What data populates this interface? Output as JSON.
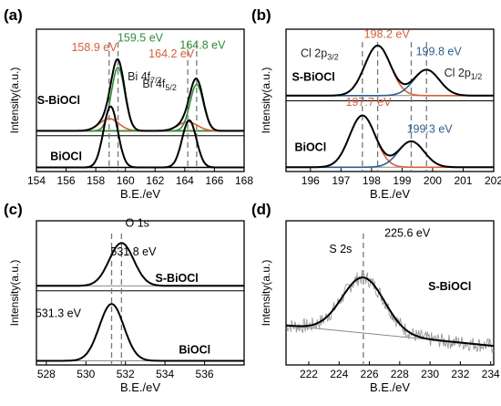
{
  "chart_data": [
    {
      "panel": "(a)",
      "type": "line",
      "xlabel": "B.E./eV",
      "ylabel": "Intensity(a.u.)",
      "xlim": [
        154,
        168
      ],
      "x_reversed": false,
      "x_ticks": [
        154,
        156,
        158,
        160,
        162,
        164,
        166,
        168
      ],
      "grid": false,
      "series": [
        {
          "name": "S-BiOCl",
          "baseline": 0.5,
          "peaks": [
            {
              "pos": 158.9,
              "height": 0.15,
              "width": 0.65,
              "color": "#d65f3a"
            },
            {
              "pos": 159.5,
              "height": 0.78,
              "width": 0.45,
              "color": "#2e8b3a"
            },
            {
              "pos": 164.2,
              "height": 0.11,
              "width": 0.65,
              "color": "#d65f3a"
            },
            {
              "pos": 164.8,
              "height": 0.57,
              "width": 0.45,
              "color": "#2e8b3a"
            }
          ]
        },
        {
          "name": "BiOCl",
          "baseline": 0.05,
          "peaks": [
            {
              "pos": 159.0,
              "height": 0.75,
              "width": 0.48,
              "color": "#000000"
            },
            {
              "pos": 164.3,
              "height": 0.58,
              "width": 0.48,
              "color": "#000000"
            }
          ]
        }
      ],
      "dashed_lines": [
        158.9,
        159.5,
        164.2,
        164.8
      ],
      "annotations": [
        {
          "text": "158.9 eV",
          "x": 157.9,
          "y": 1.48,
          "color": "#d65f3a"
        },
        {
          "text": "159.5 eV",
          "x": 161.0,
          "y": 1.6,
          "color": "#2e8b3a"
        },
        {
          "text": "164.2 eV",
          "x": 163.1,
          "y": 1.4,
          "color": "#d65f3a"
        },
        {
          "text": "164.8 eV",
          "x": 165.2,
          "y": 1.51,
          "color": "#2e8b3a"
        },
        {
          "text": "Bi 4f",
          "sub": "7/2",
          "x": 161.3,
          "y": 1.12,
          "color": "#222222"
        },
        {
          "text": "Bi 4f",
          "sub": "5/2",
          "x": 162.3,
          "y": 1.03,
          "color": "#222222"
        },
        {
          "text": "S-BiOCl",
          "x": 155.5,
          "y": 0.83,
          "bold": true
        },
        {
          "text": "BiOCl",
          "x": 156.0,
          "y": 0.14,
          "bold": true
        }
      ],
      "ylim": [
        0,
        1.75
      ]
    },
    {
      "panel": "(b)",
      "type": "line",
      "xlabel": "B.E./eV",
      "ylabel": "Intensity(a.u.)",
      "xlim": [
        195.2,
        202
      ],
      "x_reversed": false,
      "x_ticks": [
        196,
        197,
        198,
        199,
        200,
        201,
        202
      ],
      "grid": false,
      "series": [
        {
          "name": "S-BiOCl",
          "baseline": 0.88,
          "peaks": [
            {
              "pos": 198.2,
              "height": 0.58,
              "width": 0.42,
              "color": "#d65f3a"
            },
            {
              "pos": 199.8,
              "height": 0.3,
              "width": 0.42,
              "color": "#2e5f8a"
            }
          ]
        },
        {
          "name": "BiOCl",
          "baseline": 0.05,
          "peaks": [
            {
              "pos": 197.7,
              "height": 0.6,
              "width": 0.42,
              "color": "#d65f3a"
            },
            {
              "pos": 199.3,
              "height": 0.3,
              "width": 0.42,
              "color": "#2e5f8a"
            }
          ]
        }
      ],
      "dashed_lines": [
        198.2,
        199.8,
        197.7,
        199.3
      ],
      "annotations": [
        {
          "text": "198.2 eV",
          "x": 198.5,
          "y": 1.55,
          "color": "#d65f3a"
        },
        {
          "text": "199.8 eV",
          "x": 200.2,
          "y": 1.35,
          "color": "#2e5f8a"
        },
        {
          "text": "Cl 2p",
          "sub": "3/2",
          "x": 196.3,
          "y": 1.33,
          "color": "#222222"
        },
        {
          "text": "Cl 2p",
          "sub": "1/2",
          "x": 201.0,
          "y": 1.1,
          "color": "#222222"
        },
        {
          "text": "S-BiOCl",
          "x": 196.1,
          "y": 1.05,
          "bold": true
        },
        {
          "text": "197.7 eV",
          "x": 197.9,
          "y": 0.76,
          "color": "#d65f3a"
        },
        {
          "text": "199.3 eV",
          "x": 199.9,
          "y": 0.45,
          "color": "#2e5f8a"
        },
        {
          "text": "BiOCl",
          "x": 196.0,
          "y": 0.24,
          "bold": true
        }
      ],
      "ylim": [
        0,
        1.65
      ]
    },
    {
      "panel": "(c)",
      "type": "line",
      "xlabel": "B.E./eV",
      "ylabel": "Intensity(a.u.)",
      "xlim": [
        527.5,
        538
      ],
      "x_reversed": false,
      "x_ticks": [
        528,
        530,
        532,
        534,
        536
      ],
      "grid": false,
      "series": [
        {
          "name": "S-BiOCl",
          "baseline": 0.96,
          "peaks": [
            {
              "pos": 531.8,
              "height": 0.52,
              "width": 0.62,
              "color": "#000000"
            }
          ]
        },
        {
          "name": "BiOCl",
          "baseline": 0.05,
          "peaks": [
            {
              "pos": 531.3,
              "height": 0.69,
              "width": 0.62,
              "color": "#000000"
            }
          ]
        }
      ],
      "dashed_lines": [
        531.8,
        531.3
      ],
      "annotations": [
        {
          "text": "O 1s",
          "x": 532.6,
          "y": 1.68
        },
        {
          "text": "531.8 eV",
          "x": 532.4,
          "y": 1.33
        },
        {
          "text": "S-BiOCl",
          "x": 534.6,
          "y": 1.01,
          "bold": true
        },
        {
          "text": "531.3 eV",
          "x": 528.6,
          "y": 0.58
        },
        {
          "text": "BiOCl",
          "x": 535.5,
          "y": 0.14,
          "bold": true
        }
      ],
      "ylim": [
        0,
        1.75
      ]
    },
    {
      "panel": "(d)",
      "type": "line",
      "xlabel": "B.E./eV",
      "ylabel": "Intensity(a.u.)",
      "xlim": [
        220.5,
        234.2
      ],
      "x_reversed": false,
      "x_ticks": [
        222,
        224,
        226,
        228,
        230,
        232,
        234
      ],
      "grid": false,
      "series": [
        {
          "name": "S-BiOCl",
          "baseline": 0.22,
          "baseline_slope": -0.014,
          "peaks": [
            {
              "pos": 225.6,
              "height": 0.52,
              "width": 1.4,
              "color": "#000000"
            }
          ],
          "noise": 0.07
        }
      ],
      "dashed_lines": [
        225.6
      ],
      "annotations": [
        {
          "text": "225.6 eV",
          "x": 228.5,
          "y": 1.05
        },
        {
          "text": "S 2s",
          "x": 224.1,
          "y": 0.9
        },
        {
          "text": "S-BiOCl",
          "x": 231.3,
          "y": 0.55,
          "bold": true
        }
      ],
      "ylim": [
        -0.15,
        1.2
      ]
    }
  ]
}
